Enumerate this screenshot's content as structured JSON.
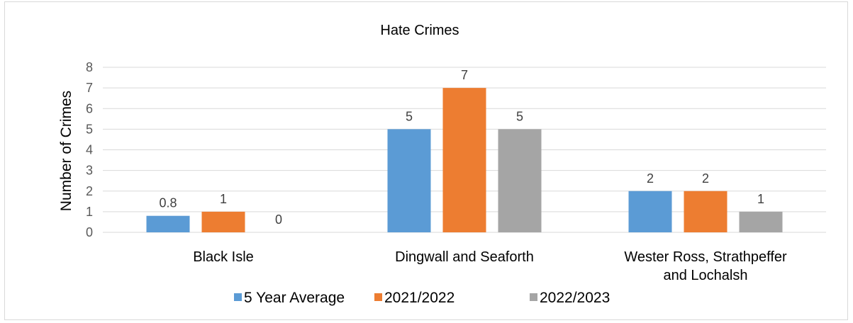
{
  "chart_data": {
    "type": "bar",
    "title": "Hate Crimes",
    "xlabel": "",
    "ylabel": "Number of Crimes",
    "ylim": [
      0,
      8
    ],
    "yticks": [
      0,
      1,
      2,
      3,
      4,
      5,
      6,
      7,
      8
    ],
    "grid": true,
    "legend_position": "bottom",
    "categories": [
      [
        "Black Isle"
      ],
      [
        "Dingwall and Seaforth"
      ],
      [
        "Wester Ross, Strathpeffer",
        "and Lochalsh"
      ]
    ],
    "series": [
      {
        "name": "5 Year Average",
        "color": "#5b9bd5",
        "values": [
          0.8,
          5,
          2
        ],
        "labels": [
          "0.8",
          "5",
          "2"
        ]
      },
      {
        "name": "2021/2022",
        "color": "#ed7d31",
        "values": [
          1,
          7,
          2
        ],
        "labels": [
          "1",
          "7",
          "2"
        ]
      },
      {
        "name": "2022/2023",
        "color": "#a5a5a5",
        "values": [
          0,
          5,
          1
        ],
        "labels": [
          "0",
          "5",
          "1"
        ]
      }
    ]
  }
}
